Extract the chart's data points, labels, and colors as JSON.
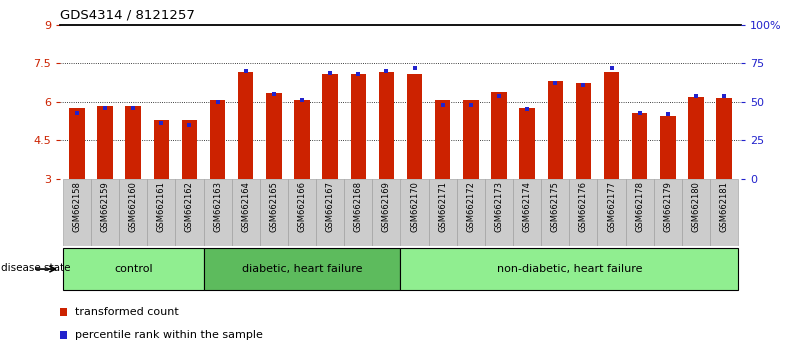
{
  "title": "GDS4314 / 8121257",
  "samples": [
    "GSM662158",
    "GSM662159",
    "GSM662160",
    "GSM662161",
    "GSM662162",
    "GSM662163",
    "GSM662164",
    "GSM662165",
    "GSM662166",
    "GSM662167",
    "GSM662168",
    "GSM662169",
    "GSM662170",
    "GSM662171",
    "GSM662172",
    "GSM662173",
    "GSM662174",
    "GSM662175",
    "GSM662176",
    "GSM662177",
    "GSM662178",
    "GSM662179",
    "GSM662180",
    "GSM662181"
  ],
  "red_values": [
    5.75,
    5.85,
    5.85,
    5.3,
    5.3,
    6.05,
    7.15,
    6.35,
    6.05,
    7.1,
    7.1,
    7.15,
    7.1,
    6.05,
    6.05,
    6.4,
    5.75,
    6.8,
    6.75,
    7.15,
    5.55,
    5.45,
    6.2,
    6.15
  ],
  "blue_values": [
    43,
    46,
    46,
    36,
    35,
    50,
    70,
    55,
    51,
    69,
    68,
    70,
    72,
    48,
    48,
    54,
    45,
    62,
    61,
    72,
    43,
    42,
    54,
    54
  ],
  "groups": [
    {
      "label": "control",
      "start": 0,
      "end": 5,
      "color": "#90ee90"
    },
    {
      "label": "diabetic, heart failure",
      "start": 5,
      "end": 12,
      "color": "#5dbb5d"
    },
    {
      "label": "non-diabetic, heart failure",
      "start": 12,
      "end": 24,
      "color": "#90ee90"
    }
  ],
  "y_min": 3,
  "y_max": 9,
  "yticks_left": [
    3,
    4.5,
    6,
    7.5,
    9
  ],
  "ytick_labels_left": [
    "3",
    "4.5",
    "6",
    "7.5",
    "9"
  ],
  "yticks_right_pct": [
    0,
    25,
    50,
    75,
    100
  ],
  "ytick_labels_right": [
    "0",
    "25",
    "50",
    "75",
    "100%"
  ],
  "bar_color": "#cc2200",
  "dot_color": "#2222cc",
  "left_tick_color": "#cc2200",
  "right_tick_color": "#2222cc",
  "legend_items": [
    "transformed count",
    "percentile rank within the sample"
  ],
  "disease_state_label": "disease state",
  "bg_label_color": "#cccccc",
  "grid_lines": [
    4.5,
    6.0,
    7.5
  ],
  "bar_width": 0.55
}
